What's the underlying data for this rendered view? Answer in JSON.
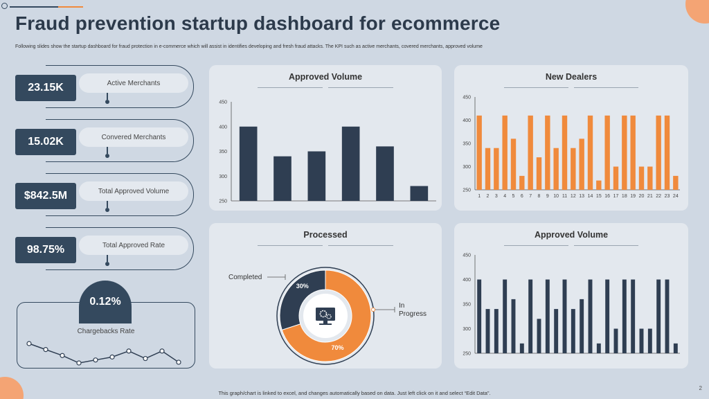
{
  "header": {
    "title": "Fraud prevention startup dashboard for ecommerce",
    "subtitle": "Following slides show  the startup dashboard for fraud protection in e-commerce which will assist in identifies developing and fresh fraud attacks. The KPI  such as active merchants, covered merchants, approved volume"
  },
  "kpis": [
    {
      "value": "23.15K",
      "label": "Active Merchants"
    },
    {
      "value": "15.02K",
      "label": "Convered  Merchants"
    },
    {
      "value": "$842.5M",
      "label": "Total Approved  Volume"
    },
    {
      "value": "98.75%",
      "label": "Total Approved  Rate"
    }
  ],
  "chargebacks": {
    "value": "0.12%",
    "label": "Chargebacks  Rate",
    "trend": [
      5,
      4.2,
      3.4,
      2.4,
      2.8,
      3.2,
      4,
      3,
      4,
      2.5
    ]
  },
  "colors": {
    "dark": "#2f3e52",
    "orange": "#f08a3c"
  },
  "panels": {
    "approved_volume_top": {
      "title": "Approved Volume"
    },
    "new_dealers": {
      "title": "New Dealers"
    },
    "processed": {
      "title": "Processed",
      "center_icon": "monitor-gear-icon"
    },
    "approved_volume_bottom": {
      "title": "Approved Volume"
    }
  },
  "chart_data": [
    {
      "id": "approved_volume_top",
      "type": "bar",
      "title": "Approved Volume",
      "ylim": [
        250,
        450
      ],
      "yticks": [
        250,
        300,
        350,
        400,
        450
      ],
      "values": [
        400,
        340,
        350,
        400,
        360,
        280
      ],
      "color": "#2f3e52"
    },
    {
      "id": "new_dealers",
      "type": "bar",
      "title": "New Dealers",
      "ylim": [
        250,
        450
      ],
      "yticks": [
        250,
        300,
        350,
        400,
        450
      ],
      "categories": [
        "1",
        "2",
        "3",
        "4",
        "5",
        "6",
        "7",
        "8",
        "9",
        "10",
        "11",
        "12",
        "13",
        "14",
        "15",
        "16",
        "17",
        "18",
        "19",
        "20",
        "21",
        "22",
        "23",
        "24"
      ],
      "values": [
        410,
        340,
        340,
        410,
        360,
        280,
        410,
        320,
        410,
        340,
        410,
        340,
        360,
        410,
        270,
        410,
        300,
        410,
        410,
        300,
        300,
        410,
        410,
        280
      ],
      "color": "#f08a3c"
    },
    {
      "id": "processed",
      "type": "pie",
      "title": "Processed",
      "slices": [
        {
          "name": "Completed",
          "value": 30,
          "label": "30%",
          "color": "#2f3e52"
        },
        {
          "name": "In Progress",
          "value": 70,
          "label": "70%",
          "color": "#f08a3c"
        }
      ]
    },
    {
      "id": "approved_volume_bottom",
      "type": "bar",
      "title": "Approved Volume",
      "ylim": [
        250,
        450
      ],
      "yticks": [
        250,
        300,
        350,
        400,
        450
      ],
      "values": [
        400,
        340,
        340,
        400,
        360,
        270,
        400,
        320,
        400,
        340,
        400,
        340,
        360,
        400,
        270,
        400,
        300,
        400,
        400,
        300,
        300,
        400,
        400,
        270
      ],
      "color": "#2f3e52"
    }
  ],
  "footer": {
    "note": "This graph/chart is linked to excel, and changes automatically based on data. Just left click on it and select “Edit Data”.",
    "page": "2"
  }
}
